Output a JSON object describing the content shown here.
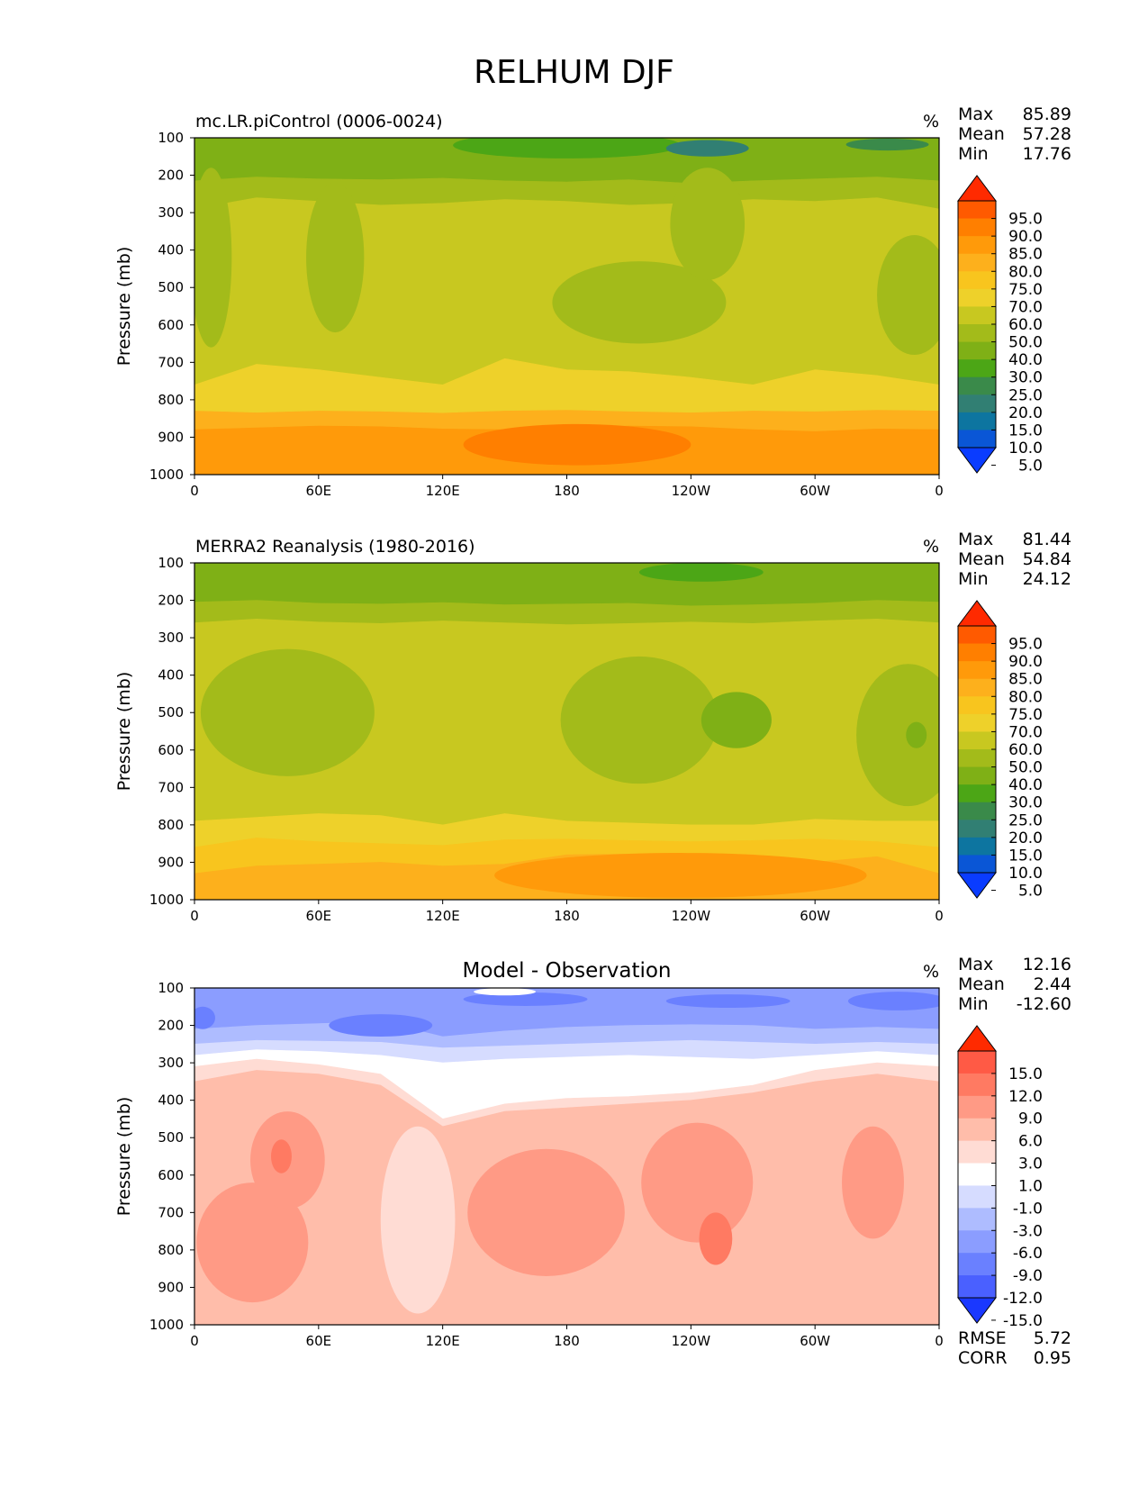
{
  "title": "RELHUM DJF",
  "chart_data": [
    {
      "type": "heatmap",
      "title": "mc.LR.piControl (0006-0024)",
      "units": "%",
      "ylabel": "Pressure (mb)",
      "xticks": [
        "0",
        "60E",
        "120E",
        "180",
        "120W",
        "60W",
        "0"
      ],
      "yticks": [
        "100",
        "200",
        "300",
        "400",
        "500",
        "600",
        "700",
        "800",
        "900",
        "1000"
      ],
      "xlim": [
        0,
        360
      ],
      "ylim": [
        100,
        1000
      ],
      "stats": {
        "max_label": "Max",
        "max": "85.89",
        "mean_label": "Mean",
        "mean": "57.28",
        "min_label": "Min",
        "min": "17.76"
      },
      "colorbar": {
        "levels": [
          "95.0",
          "90.0",
          "85.0",
          "80.0",
          "75.0",
          "70.0",
          "60.0",
          "50.0",
          "40.0",
          "30.0",
          "25.0",
          "20.0",
          "15.0",
          "10.0",
          "5.0"
        ],
        "colors": [
          "#ff2a00",
          "#ff5a00",
          "#ff7f00",
          "#ff9a0a",
          "#fdb01c",
          "#f8c51e",
          "#eed12a",
          "#c8c820",
          "#a3bb1a",
          "#7fb016",
          "#4ca616",
          "#3a8a4a",
          "#317f73",
          "#0d75a0",
          "#0a56d6",
          "#0a3cff"
        ]
      },
      "bands": [
        {
          "color": "#ff9a0a",
          "top": [
            880,
            875,
            870,
            872,
            878,
            880,
            875,
            870,
            872,
            880,
            885,
            878,
            880
          ]
        },
        {
          "color": "#fdb01c",
          "top": [
            830,
            835,
            830,
            832,
            836,
            830,
            828,
            832,
            835,
            830,
            832,
            828,
            830
          ]
        },
        {
          "color": "#eed12a",
          "top": [
            760,
            705,
            720,
            740,
            760,
            690,
            720,
            725,
            740,
            760,
            720,
            735,
            760
          ]
        },
        {
          "color": "#c8c820",
          "top": [
            290,
            260,
            270,
            280,
            275,
            265,
            270,
            280,
            275,
            265,
            270,
            260,
            290
          ]
        },
        {
          "color": "#a3bb1a",
          "top": [
            215,
            205,
            210,
            212,
            208,
            215,
            218,
            212,
            222,
            215,
            210,
            205,
            215
          ]
        },
        {
          "color": "#7fb016",
          "top": [
            100,
            100,
            100,
            100,
            100,
            100,
            100,
            100,
            100,
            100,
            100,
            100,
            100
          ]
        }
      ],
      "blobs": [
        {
          "color": "#a3bb1a",
          "x": 68,
          "y": 420,
          "rx": 14,
          "ry": 200
        },
        {
          "color": "#a3bb1a",
          "x": 8,
          "y": 420,
          "rx": 10,
          "ry": 240
        },
        {
          "color": "#a3bb1a",
          "x": 215,
          "y": 540,
          "rx": 42,
          "ry": 110
        },
        {
          "color": "#a3bb1a",
          "x": 348,
          "y": 520,
          "rx": 18,
          "ry": 160
        },
        {
          "color": "#a3bb1a",
          "x": 248,
          "y": 330,
          "rx": 18,
          "ry": 150
        },
        {
          "color": "#4ca616",
          "x": 180,
          "y": 120,
          "rx": 55,
          "ry": 35
        },
        {
          "color": "#317f73",
          "x": 248,
          "y": 128,
          "rx": 20,
          "ry": 22
        },
        {
          "color": "#3a8a4a",
          "x": 335,
          "y": 118,
          "rx": 20,
          "ry": 16
        },
        {
          "color": "#ff7f00",
          "x": 185,
          "y": 920,
          "rx": 55,
          "ry": 55
        }
      ]
    },
    {
      "type": "heatmap",
      "title": "MERRA2 Reanalysis (1980-2016)",
      "units": "%",
      "ylabel": "Pressure (mb)",
      "xticks": [
        "0",
        "60E",
        "120E",
        "180",
        "120W",
        "60W",
        "0"
      ],
      "yticks": [
        "100",
        "200",
        "300",
        "400",
        "500",
        "600",
        "700",
        "800",
        "900",
        "1000"
      ],
      "xlim": [
        0,
        360
      ],
      "ylim": [
        100,
        1000
      ],
      "stats": {
        "max_label": "Max",
        "max": "81.44",
        "mean_label": "Mean",
        "mean": "54.84",
        "min_label": "Min",
        "min": "24.12"
      },
      "colorbar": {
        "levels": [
          "95.0",
          "90.0",
          "85.0",
          "80.0",
          "75.0",
          "70.0",
          "60.0",
          "50.0",
          "40.0",
          "30.0",
          "25.0",
          "20.0",
          "15.0",
          "10.0",
          "5.0"
        ],
        "colors": [
          "#ff2a00",
          "#ff5a00",
          "#ff7f00",
          "#ff9a0a",
          "#fdb01c",
          "#f8c51e",
          "#eed12a",
          "#c8c820",
          "#a3bb1a",
          "#7fb016",
          "#4ca616",
          "#3a8a4a",
          "#317f73",
          "#0d75a0",
          "#0a56d6",
          "#0a3cff"
        ]
      },
      "bands": [
        {
          "color": "#fdb01c",
          "top": [
            930,
            910,
            905,
            900,
            910,
            905,
            880,
            878,
            880,
            880,
            900,
            885,
            930
          ]
        },
        {
          "color": "#f8c51e",
          "top": [
            860,
            835,
            845,
            850,
            855,
            840,
            838,
            842,
            845,
            842,
            838,
            845,
            860
          ]
        },
        {
          "color": "#eed12a",
          "top": [
            790,
            780,
            770,
            775,
            800,
            770,
            790,
            795,
            800,
            800,
            785,
            790,
            790
          ]
        },
        {
          "color": "#c8c820",
          "top": [
            260,
            250,
            258,
            262,
            255,
            260,
            265,
            262,
            258,
            262,
            255,
            250,
            260
          ]
        },
        {
          "color": "#a3bb1a",
          "top": [
            205,
            200,
            208,
            210,
            206,
            212,
            210,
            208,
            215,
            212,
            208,
            200,
            205
          ]
        },
        {
          "color": "#7fb016",
          "top": [
            100,
            100,
            100,
            100,
            100,
            100,
            100,
            100,
            100,
            100,
            100,
            100,
            100
          ]
        }
      ],
      "blobs": [
        {
          "color": "#a3bb1a",
          "x": 45,
          "y": 500,
          "rx": 42,
          "ry": 170
        },
        {
          "color": "#a3bb1a",
          "x": 215,
          "y": 520,
          "rx": 38,
          "ry": 170
        },
        {
          "color": "#a3bb1a",
          "x": 345,
          "y": 560,
          "rx": 25,
          "ry": 190
        },
        {
          "color": "#7fb016",
          "x": 262,
          "y": 520,
          "rx": 17,
          "ry": 75
        },
        {
          "color": "#7fb016",
          "x": 349,
          "y": 560,
          "rx": 5,
          "ry": 35
        },
        {
          "color": "#4ca616",
          "x": 245,
          "y": 125,
          "rx": 30,
          "ry": 25
        },
        {
          "color": "#ff9a0a",
          "x": 235,
          "y": 935,
          "rx": 90,
          "ry": 60
        }
      ]
    },
    {
      "type": "heatmap",
      "title": "Model - Observation",
      "units": "%",
      "ylabel": "Pressure (mb)",
      "xticks": [
        "0",
        "60E",
        "120E",
        "180",
        "120W",
        "60W",
        "0"
      ],
      "yticks": [
        "100",
        "200",
        "300",
        "400",
        "500",
        "600",
        "700",
        "800",
        "900",
        "1000"
      ],
      "xlim": [
        0,
        360
      ],
      "ylim": [
        100,
        1000
      ],
      "stats": {
        "max_label": "Max",
        "max": "12.16",
        "mean_label": "Mean",
        "mean": "2.44",
        "min_label": "Min",
        "min": "-12.60"
      },
      "metrics": {
        "rmse_label": "RMSE",
        "rmse": "5.72",
        "corr_label": "CORR",
        "corr": "0.95"
      },
      "colorbar": {
        "levels": [
          "15.0",
          "12.0",
          "9.0",
          "6.0",
          "3.0",
          "1.0",
          "-1.0",
          "-3.0",
          "-6.0",
          "-9.0",
          "-12.0",
          "-15.0"
        ],
        "colors": [
          "#ff2a00",
          "#ff5a45",
          "#ff7a62",
          "#ff9a85",
          "#ffbdaa",
          "#ffdcd4",
          "#ffffff",
          "#d6dcff",
          "#aebcff",
          "#8b9dff",
          "#6a80ff",
          "#4a60ff",
          "#1a38ff"
        ]
      },
      "bands": [
        {
          "color": "#ffbdaa",
          "top": [
            350,
            320,
            330,
            360,
            470,
            430,
            420,
            410,
            400,
            380,
            350,
            330,
            350
          ]
        },
        {
          "color": "#ffdcd4",
          "top": [
            310,
            290,
            305,
            330,
            450,
            410,
            395,
            390,
            380,
            360,
            320,
            300,
            310
          ]
        },
        {
          "color": "#ffffff",
          "top": [
            280,
            265,
            270,
            280,
            300,
            290,
            285,
            280,
            285,
            290,
            280,
            270,
            280
          ]
        },
        {
          "color": "#d6dcff",
          "top": [
            250,
            240,
            242,
            245,
            260,
            255,
            250,
            245,
            240,
            245,
            250,
            245,
            250
          ]
        },
        {
          "color": "#aebcff",
          "top": [
            210,
            200,
            195,
            190,
            230,
            215,
            205,
            200,
            198,
            200,
            210,
            205,
            210
          ]
        },
        {
          "color": "#8b9dff",
          "top": [
            100,
            100,
            100,
            100,
            100,
            100,
            100,
            100,
            100,
            100,
            100,
            100,
            100
          ]
        }
      ],
      "blobs": [
        {
          "color": "#ff9a85",
          "x": 28,
          "y": 780,
          "rx": 27,
          "ry": 160
        },
        {
          "color": "#ff9a85",
          "x": 45,
          "y": 560,
          "rx": 18,
          "ry": 130
        },
        {
          "color": "#ff9a85",
          "x": 170,
          "y": 700,
          "rx": 38,
          "ry": 170
        },
        {
          "color": "#ff9a85",
          "x": 243,
          "y": 620,
          "rx": 27,
          "ry": 160
        },
        {
          "color": "#ff9a85",
          "x": 328,
          "y": 620,
          "rx": 15,
          "ry": 150
        },
        {
          "color": "#ff7a62",
          "x": 42,
          "y": 550,
          "rx": 5,
          "ry": 45
        },
        {
          "color": "#ff7a62",
          "x": 252,
          "y": 770,
          "rx": 8,
          "ry": 70
        },
        {
          "color": "#ffdcd4",
          "x": 108,
          "y": 720,
          "rx": 18,
          "ry": 250
        },
        {
          "color": "#6a80ff",
          "x": 90,
          "y": 200,
          "rx": 25,
          "ry": 30
        },
        {
          "color": "#6a80ff",
          "x": 4,
          "y": 180,
          "rx": 6,
          "ry": 30
        },
        {
          "color": "#6a80ff",
          "x": 160,
          "y": 130,
          "rx": 30,
          "ry": 18
        },
        {
          "color": "#6a80ff",
          "x": 258,
          "y": 135,
          "rx": 30,
          "ry": 18
        },
        {
          "color": "#6a80ff",
          "x": 340,
          "y": 135,
          "rx": 24,
          "ry": 25
        },
        {
          "color": "#ffffff",
          "x": 150,
          "y": 110,
          "rx": 15,
          "ry": 10
        }
      ]
    }
  ]
}
